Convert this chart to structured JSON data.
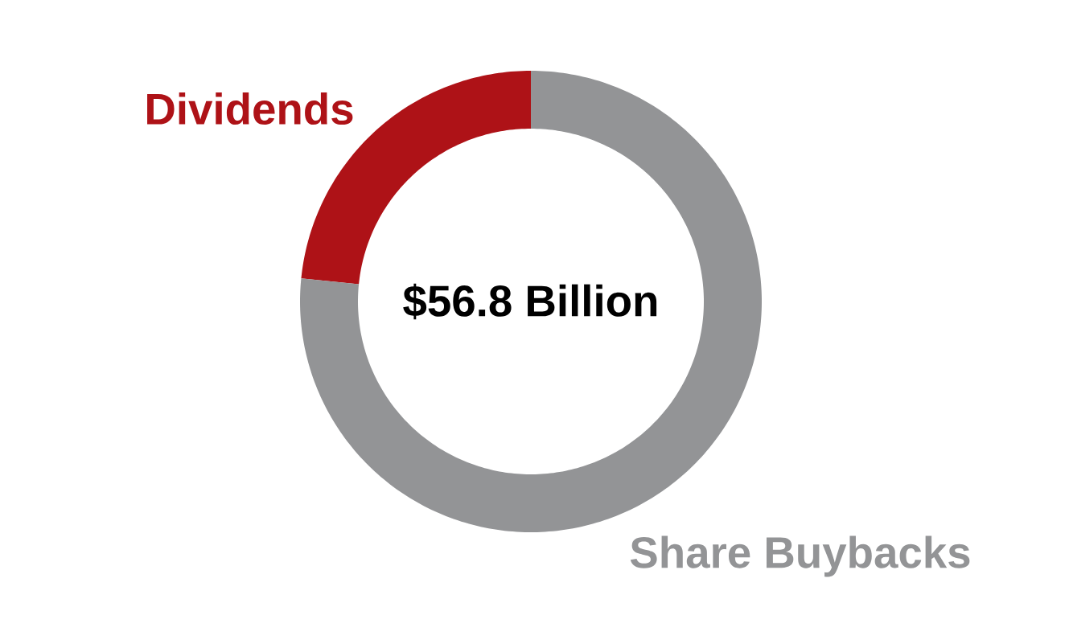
{
  "chart_data": {
    "type": "donut",
    "categories": [
      "Dividends",
      "Share Buybacks"
    ],
    "values": [
      23.4,
      76.6
    ],
    "colors": [
      "#ae1217",
      "#939496"
    ],
    "annotations": [
      "$56.8 Billion"
    ]
  }
}
